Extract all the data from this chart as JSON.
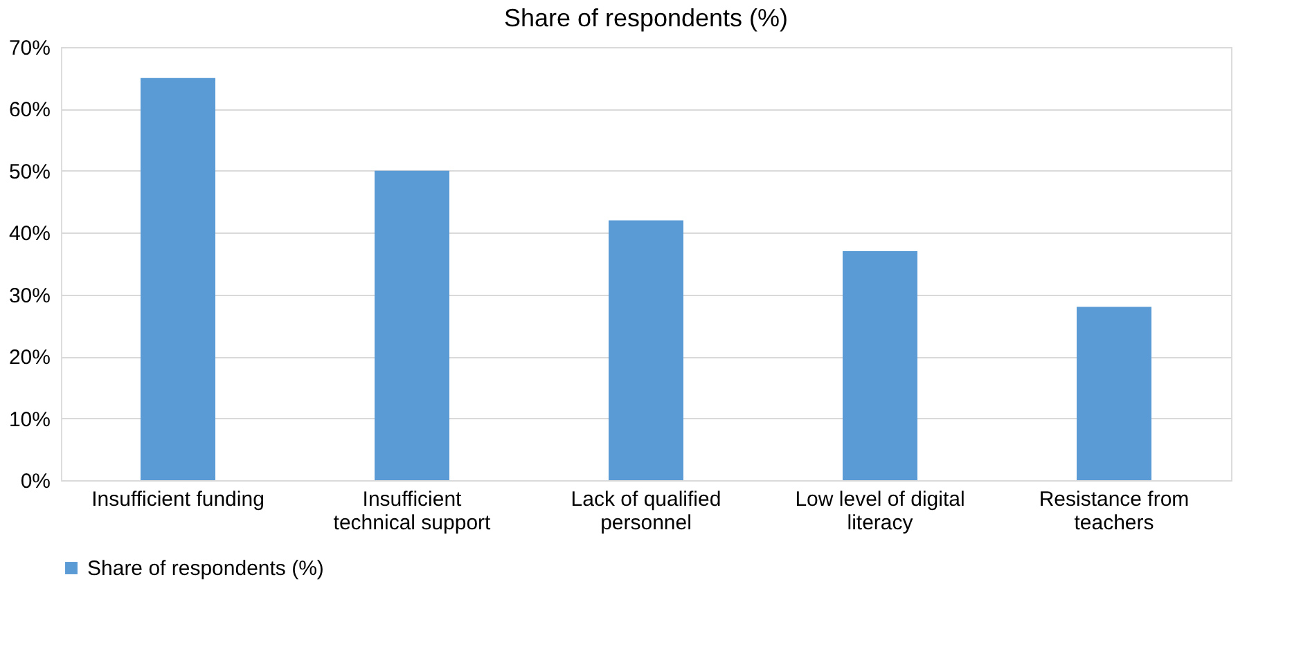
{
  "chart_data": {
    "type": "bar",
    "title": "Share of respondents (%)",
    "categories": [
      "Insufficient funding",
      "Insufficient technical support",
      "Lack of qualified personnel",
      "Low level of digital literacy",
      "Resistance from teachers"
    ],
    "series": [
      {
        "name": "Share of respondents (%)",
        "color": "#5b9bd5",
        "values": [
          65,
          50,
          42,
          37,
          28
        ]
      }
    ],
    "ylim": [
      0,
      70
    ],
    "yticks": [
      {
        "value": 0,
        "label": "0%"
      },
      {
        "value": 10,
        "label": "10%"
      },
      {
        "value": 20,
        "label": "20%"
      },
      {
        "value": 30,
        "label": "30%"
      },
      {
        "value": 40,
        "label": "40%"
      },
      {
        "value": 50,
        "label": "50%"
      },
      {
        "value": 60,
        "label": "60%"
      },
      {
        "value": 70,
        "label": "70%"
      }
    ],
    "grid": "y",
    "legend": "bottom"
  }
}
